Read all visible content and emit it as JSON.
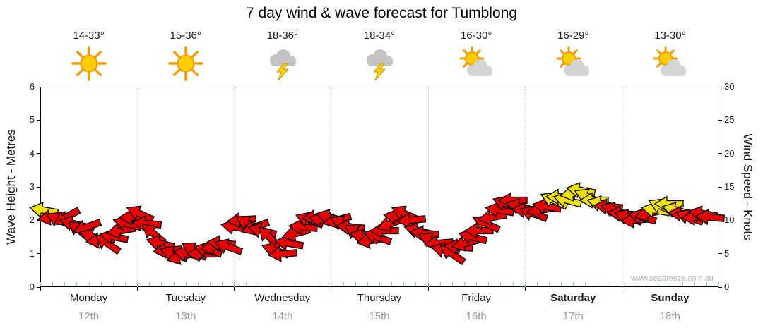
{
  "chart_data": {
    "type": "scatter",
    "title": "7 day wind & wave forecast for Tumblong",
    "watermark": "www.seabreeze.com.au",
    "left_axis": {
      "label": "Wave Height - Metres",
      "min": 0,
      "max": 6,
      "ticks": [
        0,
        1,
        2,
        3,
        4,
        5,
        6
      ]
    },
    "right_axis": {
      "label": "Wind Speed - Knots",
      "min": 0,
      "max": 30,
      "ticks": [
        0,
        5,
        10,
        15,
        20,
        25,
        30
      ]
    },
    "days": [
      {
        "name": "Monday",
        "date": "12th",
        "temp": "14-33°",
        "icon": "sunny",
        "weekend": false
      },
      {
        "name": "Tuesday",
        "date": "13th",
        "temp": "15-36°",
        "icon": "sunny",
        "weekend": false
      },
      {
        "name": "Wednesday",
        "date": "14th",
        "temp": "18-36°",
        "icon": "storm",
        "weekend": false
      },
      {
        "name": "Thursday",
        "date": "15th",
        "temp": "18-34°",
        "icon": "storm",
        "weekend": false
      },
      {
        "name": "Friday",
        "date": "16th",
        "temp": "16-30°",
        "icon": "partly-cloudy",
        "weekend": false
      },
      {
        "name": "Saturday",
        "date": "17th",
        "temp": "16-29°",
        "icon": "partly-cloudy",
        "weekend": true
      },
      {
        "name": "Sunday",
        "date": "18th",
        "temp": "13-30°",
        "icon": "partly-cloudy",
        "weekend": true
      }
    ],
    "colors": {
      "red": "#e60000",
      "yellow": "#f2e20a"
    },
    "arrows": {
      "columns": [
        "day_x",
        "knots",
        "direction_deg",
        "color"
      ],
      "points": [
        [
          0.04,
          11.5,
          190,
          "yellow"
        ],
        [
          0.12,
          10.5,
          170,
          "red"
        ],
        [
          0.2,
          10.0,
          205,
          "red"
        ],
        [
          0.27,
          10.5,
          150,
          "red"
        ],
        [
          0.34,
          9.5,
          195,
          "red"
        ],
        [
          0.41,
          8.5,
          220,
          "red"
        ],
        [
          0.48,
          9.0,
          160,
          "red"
        ],
        [
          0.55,
          7.5,
          200,
          "red"
        ],
        [
          0.62,
          7.0,
          175,
          "red"
        ],
        [
          0.69,
          6.5,
          215,
          "red"
        ],
        [
          0.76,
          7.5,
          190,
          "red"
        ],
        [
          0.83,
          8.5,
          170,
          "red"
        ],
        [
          0.9,
          9.5,
          195,
          "red"
        ],
        [
          0.96,
          10.5,
          180,
          "red"
        ],
        [
          1.03,
          11.0,
          205,
          "red"
        ],
        [
          1.1,
          9.5,
          185,
          "red"
        ],
        [
          1.17,
          8.0,
          220,
          "red"
        ],
        [
          1.24,
          6.5,
          195,
          "red"
        ],
        [
          1.31,
          5.5,
          175,
          "red"
        ],
        [
          1.38,
          5.0,
          200,
          "red"
        ],
        [
          1.45,
          4.5,
          165,
          "red"
        ],
        [
          1.52,
          5.0,
          190,
          "red"
        ],
        [
          1.59,
          5.5,
          210,
          "red"
        ],
        [
          1.66,
          5.0,
          180,
          "red"
        ],
        [
          1.73,
          5.5,
          195,
          "red"
        ],
        [
          1.8,
          6.0,
          170,
          "red"
        ],
        [
          1.87,
          6.5,
          185,
          "red"
        ],
        [
          1.94,
          6.0,
          200,
          "red"
        ],
        [
          2.01,
          9.0,
          190,
          "red"
        ],
        [
          2.08,
          10.0,
          175,
          "red"
        ],
        [
          2.15,
          9.5,
          210,
          "red"
        ],
        [
          2.22,
          9.0,
          160,
          "red"
        ],
        [
          2.29,
          8.5,
          195,
          "red"
        ],
        [
          2.36,
          7.5,
          225,
          "red"
        ],
        [
          2.43,
          5.5,
          200,
          "red"
        ],
        [
          2.5,
          5.0,
          175,
          "red"
        ],
        [
          2.57,
          6.5,
          190,
          "red"
        ],
        [
          2.64,
          8.0,
          165,
          "red"
        ],
        [
          2.71,
          9.0,
          185,
          "red"
        ],
        [
          2.78,
          10.0,
          200,
          "red"
        ],
        [
          2.85,
          10.5,
          175,
          "red"
        ],
        [
          2.92,
          10.0,
          190,
          "red"
        ],
        [
          2.99,
          10.5,
          195,
          "red"
        ],
        [
          3.06,
          10.0,
          165,
          "red"
        ],
        [
          3.13,
          9.5,
          205,
          "red"
        ],
        [
          3.2,
          9.0,
          185,
          "red"
        ],
        [
          3.27,
          8.0,
          215,
          "red"
        ],
        [
          3.34,
          7.5,
          195,
          "red"
        ],
        [
          3.41,
          7.0,
          170,
          "red"
        ],
        [
          3.48,
          7.5,
          200,
          "red"
        ],
        [
          3.55,
          8.5,
          180,
          "red"
        ],
        [
          3.62,
          9.5,
          160,
          "red"
        ],
        [
          3.69,
          10.5,
          190,
          "red"
        ],
        [
          3.76,
          11.0,
          205,
          "red"
        ],
        [
          3.83,
          10.0,
          175,
          "red"
        ],
        [
          3.9,
          8.5,
          195,
          "red"
        ],
        [
          3.97,
          8.0,
          185,
          "red"
        ],
        [
          4.04,
          7.0,
          205,
          "red"
        ],
        [
          4.11,
          6.5,
          175,
          "red"
        ],
        [
          4.18,
          5.5,
          195,
          "red"
        ],
        [
          4.25,
          5.0,
          215,
          "red"
        ],
        [
          4.32,
          6.0,
          185,
          "red"
        ],
        [
          4.39,
          6.5,
          165,
          "red"
        ],
        [
          4.46,
          7.5,
          195,
          "red"
        ],
        [
          4.53,
          8.5,
          180,
          "red"
        ],
        [
          4.6,
          9.5,
          205,
          "red"
        ],
        [
          4.67,
          10.5,
          170,
          "red"
        ],
        [
          4.74,
          11.5,
          190,
          "red"
        ],
        [
          4.81,
          12.5,
          200,
          "red"
        ],
        [
          4.88,
          13.0,
          180,
          "red"
        ],
        [
          4.95,
          12.0,
          195,
          "red"
        ],
        [
          5.02,
          11.5,
          185,
          "red"
        ],
        [
          5.09,
          11.0,
          200,
          "red"
        ],
        [
          5.16,
          11.5,
          170,
          "red"
        ],
        [
          5.23,
          12.0,
          190,
          "red"
        ],
        [
          5.3,
          13.0,
          205,
          "yellow"
        ],
        [
          5.37,
          13.5,
          180,
          "yellow"
        ],
        [
          5.44,
          13.0,
          195,
          "yellow"
        ],
        [
          5.51,
          14.0,
          170,
          "yellow"
        ],
        [
          5.58,
          14.5,
          190,
          "yellow"
        ],
        [
          5.65,
          13.5,
          205,
          "yellow"
        ],
        [
          5.72,
          13.0,
          180,
          "yellow"
        ],
        [
          5.79,
          12.5,
          195,
          "yellow"
        ],
        [
          5.86,
          12.0,
          185,
          "red"
        ],
        [
          5.93,
          11.5,
          200,
          "red"
        ],
        [
          6.0,
          11.0,
          185,
          "red"
        ],
        [
          6.07,
          10.5,
          200,
          "red"
        ],
        [
          6.14,
          10.0,
          175,
          "red"
        ],
        [
          6.21,
          10.5,
          195,
          "red"
        ],
        [
          6.28,
          11.0,
          165,
          "red"
        ],
        [
          6.35,
          11.5,
          190,
          "yellow"
        ],
        [
          6.42,
          12.0,
          205,
          "yellow"
        ],
        [
          6.49,
          12.5,
          180,
          "yellow"
        ],
        [
          6.56,
          11.5,
          195,
          "yellow"
        ],
        [
          6.63,
          11.0,
          185,
          "red"
        ],
        [
          6.7,
          10.5,
          200,
          "red"
        ],
        [
          6.77,
          10.5,
          175,
          "red"
        ],
        [
          6.84,
          11.0,
          190,
          "red"
        ],
        [
          6.91,
          10.5,
          185,
          "red"
        ]
      ]
    }
  }
}
